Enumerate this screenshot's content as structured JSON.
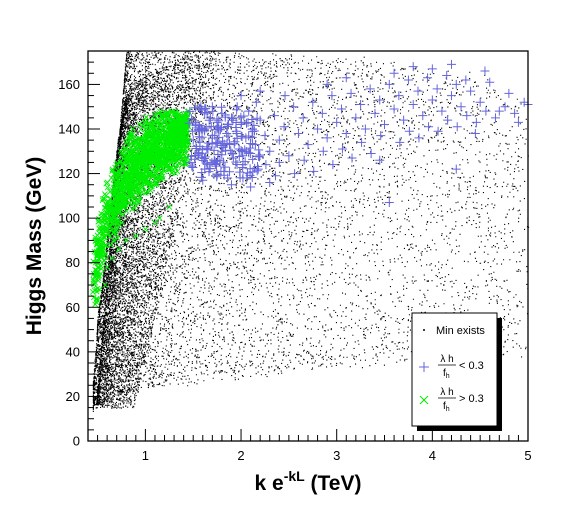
{
  "chart_data": {
    "type": "scatter",
    "title": "",
    "xlabel": {
      "base": "k e",
      "superscript": "-kL",
      "unit": " (TeV)"
    },
    "ylabel": "Higgs Mass (GeV)",
    "xlim": [
      0.4,
      5
    ],
    "ylim": [
      0,
      175
    ],
    "x_ticks": [
      1,
      2,
      3,
      4,
      5
    ],
    "y_ticks": [
      0,
      20,
      40,
      60,
      80,
      100,
      120,
      140,
      160
    ],
    "grid": false,
    "legend_position": "bottom-right",
    "legend": {
      "title": "Min exists",
      "entries": [
        {
          "numerator": "λ h",
          "denominator": "f",
          "subscript": "h",
          "relation": "< 0.3"
        },
        {
          "numerator": "λ h",
          "denominator": "f",
          "subscript": "h",
          "relation": "> 0.3"
        }
      ]
    },
    "series": [
      {
        "marker": "dot",
        "color": "#000000",
        "description_region": "dense band from (0.45,20) rising to (0.8,170), fanning out to the right",
        "curve_families": [
          {
            "x_start": 0.45,
            "y_start": 15,
            "x_end": 5.0,
            "y_end": 40
          },
          {
            "x_start": 0.45,
            "y_start": 25,
            "x_end": 5.0,
            "y_end": 60
          },
          {
            "x_start": 0.48,
            "y_start": 40,
            "x_end": 5.0,
            "y_end": 85
          },
          {
            "x_start": 0.5,
            "y_start": 55,
            "x_end": 5.0,
            "y_end": 110
          },
          {
            "x_start": 0.55,
            "y_start": 70,
            "x_end": 5.0,
            "y_end": 130
          },
          {
            "x_start": 0.6,
            "y_start": 90,
            "x_end": 5.0,
            "y_end": 150
          },
          {
            "x_start": 0.65,
            "y_start": 110,
            "x_end": 4.5,
            "y_end": 165
          },
          {
            "x_start": 0.7,
            "y_start": 130,
            "x_end": 3.0,
            "y_end": 172
          },
          {
            "x_start": 0.78,
            "y_start": 150,
            "x_end": 1.5,
            "y_end": 175
          }
        ]
      },
      {
        "marker": "plus",
        "color": "#6666dd",
        "points": [
          [
            1.5,
            135
          ],
          [
            1.55,
            128
          ],
          [
            1.6,
            140
          ],
          [
            1.62,
            122
          ],
          [
            1.65,
            132
          ],
          [
            1.7,
            137
          ],
          [
            1.72,
            126
          ],
          [
            1.75,
            143
          ],
          [
            1.8,
            130
          ],
          [
            1.82,
            121
          ],
          [
            1.85,
            138
          ],
          [
            1.88,
            133
          ],
          [
            1.9,
            145
          ],
          [
            1.92,
            127
          ],
          [
            1.95,
            139
          ],
          [
            1.98,
            131
          ],
          [
            2.0,
            142
          ],
          [
            2.02,
            124
          ],
          [
            2.05,
            136
          ],
          [
            2.08,
            148
          ],
          [
            2.1,
            129
          ],
          [
            2.12,
            140
          ],
          [
            2.15,
            133
          ],
          [
            2.18,
            122
          ],
          [
            2.2,
            144
          ],
          [
            2.25,
            137
          ],
          [
            2.3,
            130
          ],
          [
            2.35,
            146
          ],
          [
            2.4,
            135
          ],
          [
            2.45,
            141
          ],
          [
            2.5,
            128
          ],
          [
            2.55,
            150
          ],
          [
            2.6,
            138
          ],
          [
            2.65,
            145
          ],
          [
            2.7,
            133
          ],
          [
            2.75,
            152
          ],
          [
            2.8,
            140
          ],
          [
            2.85,
            147
          ],
          [
            2.9,
            136
          ],
          [
            2.95,
            155
          ],
          [
            3.0,
            143
          ],
          [
            3.05,
            149
          ],
          [
            3.1,
            138
          ],
          [
            3.15,
            156
          ],
          [
            3.2,
            145
          ],
          [
            3.25,
            151
          ],
          [
            3.3,
            140
          ],
          [
            3.35,
            158
          ],
          [
            3.4,
            147
          ],
          [
            3.45,
            153
          ],
          [
            3.5,
            142
          ],
          [
            3.55,
            160
          ],
          [
            3.6,
            149
          ],
          [
            3.65,
            155
          ],
          [
            3.7,
            144
          ],
          [
            3.75,
            162
          ],
          [
            3.8,
            151
          ],
          [
            3.85,
            157
          ],
          [
            3.9,
            146
          ],
          [
            3.95,
            163
          ],
          [
            4.0,
            153
          ],
          [
            4.05,
            158
          ],
          [
            4.1,
            148
          ],
          [
            4.15,
            164
          ],
          [
            4.2,
            155
          ],
          [
            4.25,
            160
          ],
          [
            4.3,
            150
          ],
          [
            4.4,
            157
          ],
          [
            4.5,
            152
          ],
          [
            4.6,
            161
          ],
          [
            4.7,
            148
          ],
          [
            4.8,
            156
          ],
          [
            4.9,
            143
          ],
          [
            5.0,
            151
          ],
          [
            4.55,
            166
          ],
          [
            4.35,
            162
          ],
          [
            3.55,
            107
          ],
          [
            3.45,
            126
          ],
          [
            4.25,
            122
          ],
          [
            4.45,
            138
          ],
          [
            1.58,
            150
          ],
          [
            1.68,
            145
          ],
          [
            1.78,
            126
          ],
          [
            1.86,
            118
          ],
          [
            1.96,
            150
          ],
          [
            2.06,
            118
          ],
          [
            2.16,
            152
          ],
          [
            2.26,
            124
          ],
          [
            2.36,
            119
          ],
          [
            2.46,
            155
          ],
          [
            1.52,
            143
          ],
          [
            1.6,
            117
          ],
          [
            1.7,
            150
          ],
          [
            1.8,
            147
          ],
          [
            1.9,
            115
          ],
          [
            2.0,
            155
          ],
          [
            2.1,
            114
          ],
          [
            2.2,
            157
          ],
          [
            2.3,
            116
          ],
          [
            2.4,
            125
          ],
          [
            2.56,
            120
          ],
          [
            2.66,
            126
          ],
          [
            2.76,
            121
          ],
          [
            2.86,
            130
          ],
          [
            2.96,
            124
          ],
          [
            3.06,
            131
          ],
          [
            3.16,
            127
          ],
          [
            3.26,
            134
          ],
          [
            3.36,
            129
          ],
          [
            3.46,
            137
          ],
          [
            3.66,
            134
          ],
          [
            3.76,
            139
          ],
          [
            3.86,
            136
          ],
          [
            3.96,
            141
          ],
          [
            4.06,
            139
          ],
          [
            4.16,
            144
          ],
          [
            4.26,
            141
          ],
          [
            4.36,
            146
          ],
          [
            4.46,
            143
          ],
          [
            4.56,
            148
          ],
          [
            4.66,
            145
          ],
          [
            4.76,
            150
          ],
          [
            4.86,
            147
          ],
          [
            4.96,
            152
          ],
          [
            3.6,
            165
          ],
          [
            3.8,
            168
          ],
          [
            4.0,
            167
          ],
          [
            4.2,
            169
          ],
          [
            2.9,
            160
          ],
          [
            3.1,
            163
          ]
        ]
      },
      {
        "marker": "cross",
        "color": "#00ee00",
        "description_region": "dense cluster from (0.45,75) up to (1.5,145)",
        "center_line": [
          [
            0.45,
            72
          ],
          [
            0.6,
            100
          ],
          [
            0.8,
            118
          ],
          [
            1.0,
            128
          ],
          [
            1.2,
            135
          ],
          [
            1.45,
            140
          ]
        ],
        "band_halfwidth": 16,
        "outliers": [
          [
            0.5,
            63
          ],
          [
            0.52,
            68
          ],
          [
            0.58,
            70
          ],
          [
            0.6,
            78
          ],
          [
            0.65,
            82
          ],
          [
            0.72,
            86
          ],
          [
            0.8,
            90
          ],
          [
            0.9,
            92
          ],
          [
            1.0,
            95
          ],
          [
            1.1,
            98
          ],
          [
            1.15,
            100
          ],
          [
            1.25,
            105
          ],
          [
            1.4,
            145
          ],
          [
            1.45,
            148
          ]
        ]
      }
    ]
  }
}
